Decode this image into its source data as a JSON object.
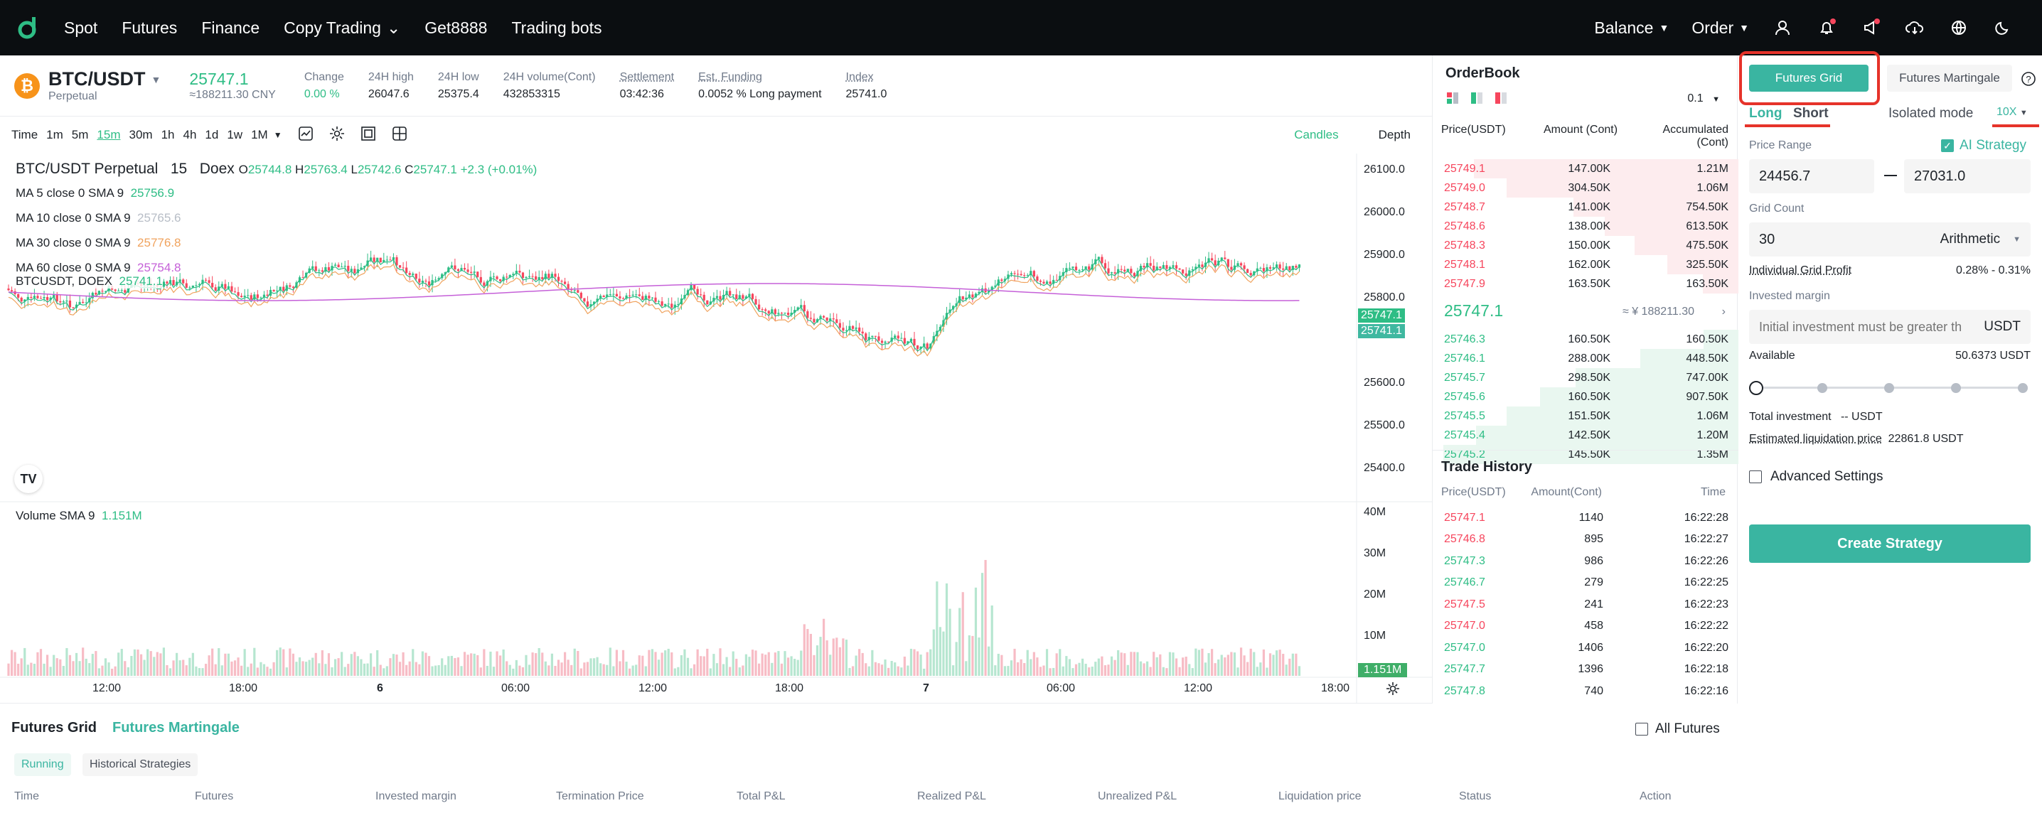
{
  "nav": {
    "left": [
      "Spot",
      "Futures",
      "Finance",
      "Copy Trading",
      "Get8888",
      "Trading bots"
    ],
    "balance": "Balance",
    "order": "Order"
  },
  "ticker": {
    "pair": "BTC/USDT",
    "type": "Perpetual",
    "price": "25747.1",
    "price_cny": "≈188211.30 CNY",
    "stats": [
      {
        "label": "Change",
        "value": "0.00 %",
        "green": true,
        "dotted": false
      },
      {
        "label": "24H high",
        "value": "26047.6",
        "green": false,
        "dotted": false
      },
      {
        "label": "24H low",
        "value": "25375.4",
        "green": false,
        "dotted": false
      },
      {
        "label": "24H volume(Cont)",
        "value": "432853315",
        "green": false,
        "dotted": false
      },
      {
        "label": "Settlement",
        "value": "03:42:36",
        "green": false,
        "dotted": true
      },
      {
        "label": "Est. Funding",
        "value": "0.0052 % Long payment",
        "green": false,
        "dotted": true
      },
      {
        "label": "Index",
        "value": "25741.0",
        "green": false,
        "dotted": true
      }
    ]
  },
  "chart_toolbar": {
    "intervals": [
      "Time",
      "1m",
      "5m",
      "15m",
      "30m",
      "1h",
      "4h",
      "1d",
      "1w",
      "1M"
    ],
    "active": "15m",
    "candles": "Candles",
    "depth": "Depth"
  },
  "chart": {
    "title": "BTC/USDT Perpetual",
    "interval": "15",
    "exchange": "Doex",
    "ohlc": {
      "o": "25744.8",
      "h": "25763.4",
      "l": "25742.6",
      "c": "25747.1",
      "chg": "+2.3 (+0.01%)"
    },
    "ma": [
      {
        "label": "MA 5 close 0 SMA 9",
        "value": "25756.9",
        "color": "#2ebd85"
      },
      {
        "label": "MA 10 close 0 SMA 9",
        "value": "25765.6",
        "color": "#b7bdc6"
      },
      {
        "label": "MA 30 close 0 SMA 9",
        "value": "25776.8",
        "color": "#f0a35e"
      },
      {
        "label": "MA 60 close 0 SMA 9",
        "value": "25754.8",
        "color": "#c560d8"
      }
    ],
    "index_label": "BTCUSDT, DOEX",
    "index_value": "25741.1",
    "y_ticks": [
      "26100.0",
      "26000.0",
      "25900.0",
      "25800.0",
      "25600.0",
      "25500.0",
      "25400.0"
    ],
    "price_tag": "25747.1",
    "index_tag": "25741.1",
    "volume_label": "Volume SMA 9",
    "volume_value": "1.151M",
    "vol_ticks": [
      "40M",
      "30M",
      "20M",
      "10M"
    ],
    "vol_tag": "1.151M",
    "x_ticks": [
      "12:00",
      "18:00",
      "6",
      "06:00",
      "12:00",
      "18:00",
      "7",
      "06:00",
      "12:00",
      "18:00"
    ]
  },
  "orderbook": {
    "title": "OrderBook",
    "precision": "0.1",
    "headers": [
      "Price(USDT)",
      "Amount (Cont)",
      "Accumulated (Cont)"
    ],
    "asks": [
      [
        "25749.1",
        "147.00K",
        "1.21M"
      ],
      [
        "25749.0",
        "304.50K",
        "1.06M"
      ],
      [
        "25748.7",
        "141.00K",
        "754.50K"
      ],
      [
        "25748.6",
        "138.00K",
        "613.50K"
      ],
      [
        "25748.3",
        "150.00K",
        "475.50K"
      ],
      [
        "25748.1",
        "162.00K",
        "325.50K"
      ],
      [
        "25747.9",
        "163.50K",
        "163.50K"
      ]
    ],
    "last": "25747.1",
    "last_cny": "≈ ¥ 188211.30",
    "bids": [
      [
        "25746.3",
        "160.50K",
        "160.50K"
      ],
      [
        "25746.1",
        "288.00K",
        "448.50K"
      ],
      [
        "25745.7",
        "298.50K",
        "747.00K"
      ],
      [
        "25745.6",
        "160.50K",
        "907.50K"
      ],
      [
        "25745.5",
        "151.50K",
        "1.06M"
      ],
      [
        "25745.4",
        "142.50K",
        "1.20M"
      ],
      [
        "25745.2",
        "145.50K",
        "1.35M"
      ]
    ]
  },
  "trades": {
    "title": "Trade History",
    "headers": [
      "Price(USDT)",
      "Amount(Cont)",
      "Time"
    ],
    "rows": [
      [
        "25747.1",
        "1140",
        "16:22:28",
        "red"
      ],
      [
        "25746.8",
        "895",
        "16:22:27",
        "red"
      ],
      [
        "25747.3",
        "986",
        "16:22:26",
        "green"
      ],
      [
        "25746.7",
        "279",
        "16:22:25",
        "green"
      ],
      [
        "25747.5",
        "241",
        "16:22:23",
        "red"
      ],
      [
        "25747.0",
        "458",
        "16:22:22",
        "red"
      ],
      [
        "25747.0",
        "1406",
        "16:22:20",
        "green"
      ],
      [
        "25747.7",
        "1396",
        "16:22:18",
        "green"
      ],
      [
        "25747.8",
        "740",
        "16:22:16",
        "green"
      ]
    ]
  },
  "strategy": {
    "tab_grid": "Futures Grid",
    "tab_martingale": "Futures Martingale",
    "long": "Long",
    "short": "Short",
    "mode": "Isolated mode",
    "leverage": "10X",
    "price_range": "Price Range",
    "ai_strategy": "AI Strategy",
    "price_low": "24456.7",
    "price_high": "27031.0",
    "grid_count_label": "Grid Count",
    "grid_count": "30",
    "grid_type": "Arithmetic",
    "profit_label": "Individual Grid Profit",
    "profit_value": "0.28% - 0.31%",
    "invested_label": "Invested margin",
    "invested_placeholder": "Initial investment must be greater th",
    "currency": "USDT",
    "available_label": "Available",
    "available_value": "50.6373 USDT",
    "total_investment": "Total investment",
    "total_value": "-- USDT",
    "liq_label": "Estimated liquidation price",
    "liq_value": "22861.8 USDT",
    "advanced": "Advanced Settings",
    "create": "Create Strategy"
  },
  "bottom": {
    "tab_grid": "Futures Grid",
    "tab_martingale": "Futures Martingale",
    "all_futures": "All Futures",
    "running": "Running",
    "historical": "Historical Strategies",
    "columns": [
      "Time",
      "Futures",
      "Invested margin",
      "Termination Price",
      "Total P&L",
      "Realized P&L",
      "Unrealized P&L",
      "Liquidation price",
      "Status",
      "Action"
    ]
  },
  "colors": {
    "accent": "#2ebd85",
    "sell": "#f6465d",
    "highlight": "#e6332a"
  }
}
